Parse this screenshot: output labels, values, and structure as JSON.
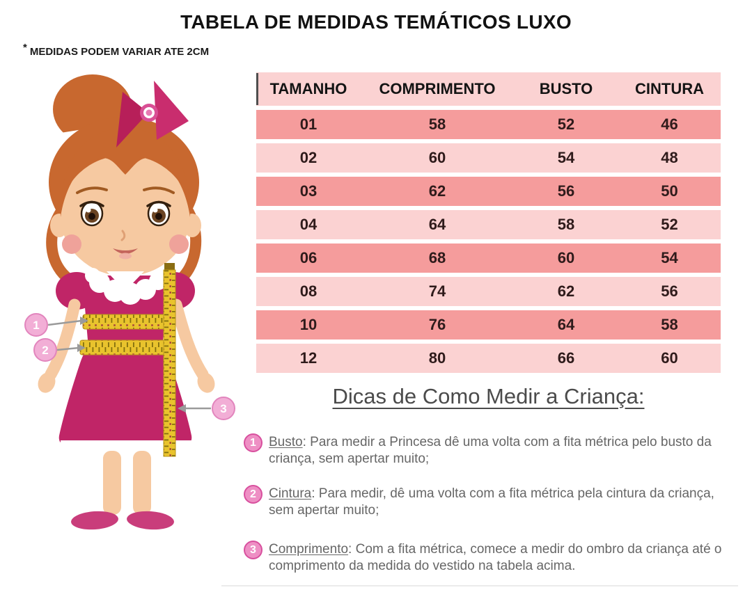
{
  "title": "TABELA DE MEDIDAS TEMÁTICOS LUXO",
  "note": {
    "marker": "*",
    "text": "MEDIDAS PODEM VARIAR ATE 2CM"
  },
  "size_table": {
    "columns": [
      "TAMANHO",
      "COMPRIMENTO",
      "BUSTO",
      "CINTURA"
    ],
    "rows": [
      {
        "tamanho": "01",
        "comprimento": "58",
        "busto": "52",
        "cintura": "46"
      },
      {
        "tamanho": "02",
        "comprimento": "60",
        "busto": "54",
        "cintura": "48"
      },
      {
        "tamanho": "03",
        "comprimento": "62",
        "busto": "56",
        "cintura": "50"
      },
      {
        "tamanho": "04",
        "comprimento": "64",
        "busto": "58",
        "cintura": "52"
      },
      {
        "tamanho": "06",
        "comprimento": "68",
        "busto": "60",
        "cintura": "54"
      },
      {
        "tamanho": "08",
        "comprimento": "74",
        "busto": "62",
        "cintura": "56"
      },
      {
        "tamanho": "10",
        "comprimento": "76",
        "busto": "64",
        "cintura": "58"
      },
      {
        "tamanho": "12",
        "comprimento": "80",
        "busto": "66",
        "cintura": "60"
      }
    ]
  },
  "tips": {
    "heading": "Dicas de Como Medir a Criança:",
    "items": [
      {
        "number": "1",
        "term": "Busto",
        "text": ": Para medir a Princesa dê uma volta com a fita métrica pelo busto da criança, sem apertar muito;"
      },
      {
        "number": "2",
        "term": "Cintura",
        "text": ": Para medir, dê uma volta com a fita métrica pela cintura da criança, sem apertar muito;"
      },
      {
        "number": "3",
        "term": "Comprimento",
        "text": ": Com a fita métrica, comece a medir do ombro da criança até o comprimento da medida do vestido na tabela acima."
      }
    ]
  },
  "illustration": {
    "description": "menina com vestido e fita métrica mostrando busto, cintura e comprimento",
    "callouts": [
      "1",
      "2",
      "3"
    ],
    "colors": {
      "dress": "#c02567",
      "hair": "#c8682f",
      "skin": "#f6c9a1",
      "tape_yellow": "#e9c32d",
      "callout_pink": "#f2aed6",
      "row_dark": "#f59c9c",
      "row_light": "#fbd2d2"
    }
  }
}
